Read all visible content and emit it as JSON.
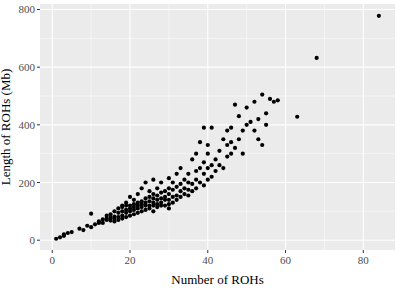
{
  "chart_data": {
    "type": "scatter",
    "x_label": "Number of ROHs",
    "y_label": "Length of ROHs (Mb)",
    "x": [
      1,
      2,
      3,
      3,
      4,
      5,
      7,
      8,
      9,
      10,
      10,
      11,
      12,
      12,
      13,
      13,
      14,
      14,
      14,
      15,
      15,
      15,
      16,
      16,
      16,
      16,
      17,
      17,
      17,
      17,
      18,
      18,
      18,
      18,
      18,
      19,
      19,
      19,
      19,
      19,
      20,
      20,
      20,
      20,
      20,
      21,
      21,
      21,
      21,
      21,
      22,
      22,
      22,
      22,
      22,
      23,
      23,
      23,
      23,
      23,
      24,
      24,
      24,
      24,
      24,
      25,
      25,
      25,
      25,
      25,
      26,
      26,
      26,
      26,
      26,
      26,
      27,
      27,
      27,
      27,
      27,
      28,
      28,
      28,
      28,
      28,
      29,
      29,
      29,
      29,
      30,
      30,
      30,
      30,
      30,
      30,
      31,
      31,
      31,
      31,
      32,
      32,
      32,
      32,
      33,
      33,
      33,
      33,
      34,
      34,
      34,
      35,
      35,
      35,
      35,
      36,
      36,
      36,
      37,
      37,
      37,
      37,
      38,
      38,
      38,
      39,
      39,
      39,
      39,
      40,
      40,
      40,
      40,
      41,
      41,
      41,
      42,
      42,
      43,
      43,
      44,
      44,
      45,
      45,
      45,
      46,
      46,
      46,
      47,
      47,
      48,
      48,
      49,
      49,
      50,
      50,
      51,
      52,
      52,
      53,
      53,
      54,
      54,
      55,
      55,
      56,
      57,
      58,
      63,
      68,
      84
    ],
    "values": [
      5,
      10,
      15,
      20,
      25,
      28,
      40,
      35,
      50,
      45,
      92,
      55,
      60,
      65,
      60,
      72,
      70,
      75,
      85,
      68,
      78,
      90,
      65,
      75,
      82,
      100,
      70,
      80,
      95,
      110,
      75,
      85,
      100,
      115,
      120,
      80,
      95,
      105,
      120,
      130,
      85,
      100,
      110,
      120,
      150,
      90,
      105,
      115,
      125,
      140,
      95,
      110,
      120,
      130,
      160,
      100,
      115,
      125,
      135,
      180,
      105,
      120,
      130,
      145,
      200,
      110,
      120,
      135,
      150,
      170,
      100,
      120,
      130,
      145,
      160,
      210,
      115,
      125,
      140,
      155,
      180,
      120,
      130,
      145,
      165,
      200,
      120,
      140,
      150,
      170,
      110,
      125,
      140,
      160,
      180,
      215,
      130,
      150,
      175,
      200,
      140,
      155,
      185,
      230,
      150,
      170,
      195,
      250,
      160,
      180,
      210,
      155,
      175,
      200,
      230,
      170,
      195,
      280,
      180,
      210,
      240,
      300,
      200,
      250,
      340,
      190,
      230,
      270,
      390,
      210,
      250,
      300,
      330,
      220,
      260,
      390,
      240,
      280,
      260,
      310,
      250,
      350,
      290,
      330,
      380,
      300,
      340,
      390,
      320,
      470,
      350,
      430,
      380,
      300,
      400,
      460,
      410,
      380,
      480,
      420,
      350,
      505,
      330,
      440,
      400,
      490,
      480,
      485,
      428,
      632,
      778
    ],
    "color": "#000000",
    "marker": "circle",
    "xlim": [
      -3.15,
      88.15
    ],
    "ylim": [
      -34,
      819
    ],
    "xticks": [
      0,
      20,
      40,
      60,
      80
    ],
    "yticks": [
      0,
      200,
      400,
      600,
      800
    ],
    "grid": true
  }
}
